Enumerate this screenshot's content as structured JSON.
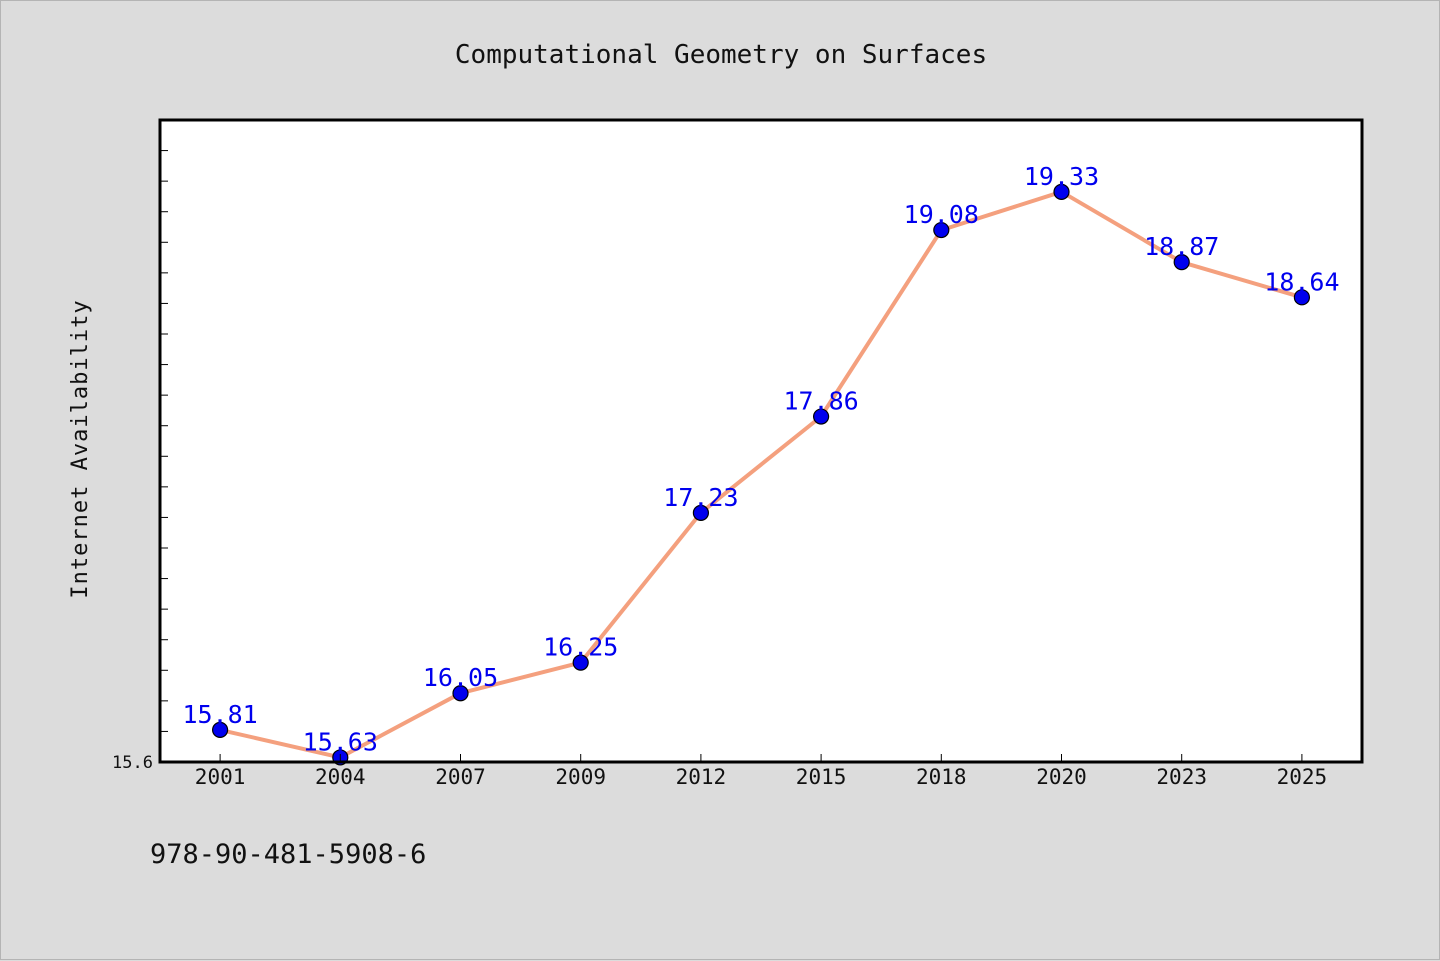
{
  "chart_data": {
    "type": "line",
    "title": "Computational Geometry on Surfaces",
    "xlabel": "",
    "ylabel": "Internet Availability",
    "categories": [
      "2001",
      "2004",
      "2007",
      "2009",
      "2012",
      "2015",
      "2018",
      "2020",
      "2023",
      "2025"
    ],
    "series": [
      {
        "values": [
          15.81,
          15.63,
          16.05,
          16.25,
          17.23,
          17.86,
          19.08,
          19.33,
          18.87,
          18.64
        ]
      }
    ],
    "data_labels": [
      "15.81",
      "15.63",
      "16.05",
      "16.25",
      "17.23",
      "17.86",
      "19.08",
      "19.33",
      "18.87",
      "18.64"
    ],
    "y_tick_label": "15.6",
    "ylim": [
      15.6,
      19.8
    ],
    "grid": false,
    "legend": "none",
    "colors": {
      "line": "#f4a07e",
      "marker": "#0000ee",
      "marker_edge": "#000000",
      "data_label": "#0000ee",
      "plot_background": "#ffffff",
      "figure_background": "#dcdcdc"
    }
  },
  "footer_text": "978-90-481-5908-6"
}
